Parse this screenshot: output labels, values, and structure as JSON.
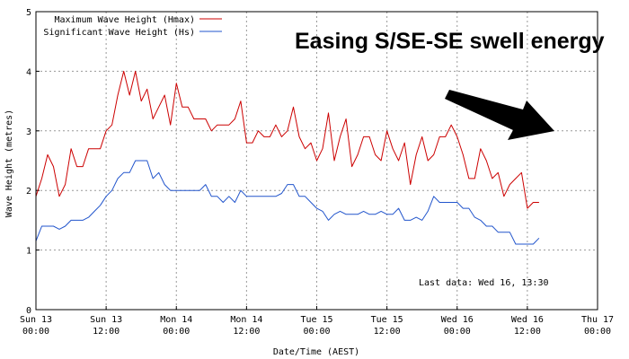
{
  "chart_data": {
    "type": "line",
    "annotation": "Easing S/SE-SE swell energy",
    "last_data": "Last data: Wed 16, 13:30",
    "xlabel": "Date/Time (AEST)",
    "ylabel": "Wave Height (metres)",
    "ylim": [
      0,
      5
    ],
    "yticks": [
      "0",
      "1",
      "2",
      "3",
      "4",
      "5"
    ],
    "x_range_hours": [
      0,
      96
    ],
    "xticks": [
      {
        "hour": 0,
        "line1": "Sun 13",
        "line2": "00:00"
      },
      {
        "hour": 12,
        "line1": "Sun 13",
        "line2": "12:00"
      },
      {
        "hour": 24,
        "line1": "Mon 14",
        "line2": "00:00"
      },
      {
        "hour": 36,
        "line1": "Mon 14",
        "line2": "12:00"
      },
      {
        "hour": 48,
        "line1": "Tue 15",
        "line2": "00:00"
      },
      {
        "hour": 60,
        "line1": "Tue 15",
        "line2": "12:00"
      },
      {
        "hour": 72,
        "line1": "Wed 16",
        "line2": "00:00"
      },
      {
        "hour": 84,
        "line1": "Wed 16",
        "line2": "12:00"
      },
      {
        "hour": 96,
        "line1": "Thu 17",
        "line2": "00:00"
      }
    ],
    "grid": true,
    "legend_position": "top-left",
    "x_hours": [
      0,
      1,
      2,
      3,
      4,
      5,
      6,
      7,
      8,
      9,
      10,
      11,
      12,
      13,
      14,
      15,
      16,
      17,
      18,
      19,
      20,
      21,
      22,
      23,
      24,
      25,
      26,
      27,
      28,
      29,
      30,
      31,
      32,
      33,
      34,
      35,
      36,
      37,
      38,
      39,
      40,
      41,
      42,
      43,
      44,
      45,
      46,
      47,
      48,
      49,
      50,
      51,
      52,
      53,
      54,
      55,
      56,
      57,
      58,
      59,
      60,
      61,
      62,
      63,
      64,
      65,
      66,
      67,
      68,
      69,
      70,
      71,
      72,
      73,
      74,
      75,
      76,
      77,
      78,
      79,
      80,
      81,
      82,
      83,
      84,
      85,
      86
    ],
    "series": [
      {
        "name": "Maximum Wave Height (Hmax)",
        "color": "#cc0000",
        "values": [
          1.9,
          2.2,
          2.6,
          2.4,
          1.9,
          2.1,
          2.7,
          2.4,
          2.4,
          2.7,
          2.7,
          2.7,
          3.0,
          3.1,
          3.6,
          4.0,
          3.6,
          4.0,
          3.5,
          3.7,
          3.2,
          3.4,
          3.6,
          3.1,
          3.8,
          3.4,
          3.4,
          3.2,
          3.2,
          3.2,
          3.0,
          3.1,
          3.1,
          3.1,
          3.2,
          3.5,
          2.8,
          2.8,
          3.0,
          2.9,
          2.9,
          3.1,
          2.9,
          3.0,
          3.4,
          2.9,
          2.7,
          2.8,
          2.5,
          2.7,
          3.3,
          2.5,
          2.9,
          3.2,
          2.4,
          2.6,
          2.9,
          2.9,
          2.6,
          2.5,
          3.0,
          2.7,
          2.5,
          2.8,
          2.1,
          2.6,
          2.9,
          2.5,
          2.6,
          2.9,
          2.9,
          3.1,
          2.9,
          2.6,
          2.2,
          2.2,
          2.7,
          2.5,
          2.2,
          2.3,
          1.9,
          2.1,
          2.2,
          2.3,
          1.7,
          1.8,
          1.8
        ]
      },
      {
        "name": "Significant Wave Height (Hs)",
        "color": "#2255cc",
        "values": [
          1.15,
          1.4,
          1.4,
          1.4,
          1.35,
          1.4,
          1.5,
          1.5,
          1.5,
          1.55,
          1.65,
          1.75,
          1.9,
          2.0,
          2.2,
          2.3,
          2.3,
          2.5,
          2.5,
          2.5,
          2.2,
          2.3,
          2.1,
          2.0,
          2.0,
          2.0,
          2.0,
          2.0,
          2.0,
          2.1,
          1.9,
          1.9,
          1.8,
          1.9,
          1.8,
          2.0,
          1.9,
          1.9,
          1.9,
          1.9,
          1.9,
          1.9,
          1.95,
          2.1,
          2.1,
          1.9,
          1.9,
          1.8,
          1.7,
          1.65,
          1.5,
          1.6,
          1.65,
          1.6,
          1.6,
          1.6,
          1.65,
          1.6,
          1.6,
          1.65,
          1.6,
          1.6,
          1.7,
          1.5,
          1.5,
          1.55,
          1.5,
          1.65,
          1.9,
          1.8,
          1.8,
          1.8,
          1.8,
          1.7,
          1.7,
          1.55,
          1.5,
          1.4,
          1.4,
          1.3,
          1.3,
          1.3,
          1.1,
          1.1,
          1.1,
          1.1,
          1.2
        ]
      }
    ]
  }
}
